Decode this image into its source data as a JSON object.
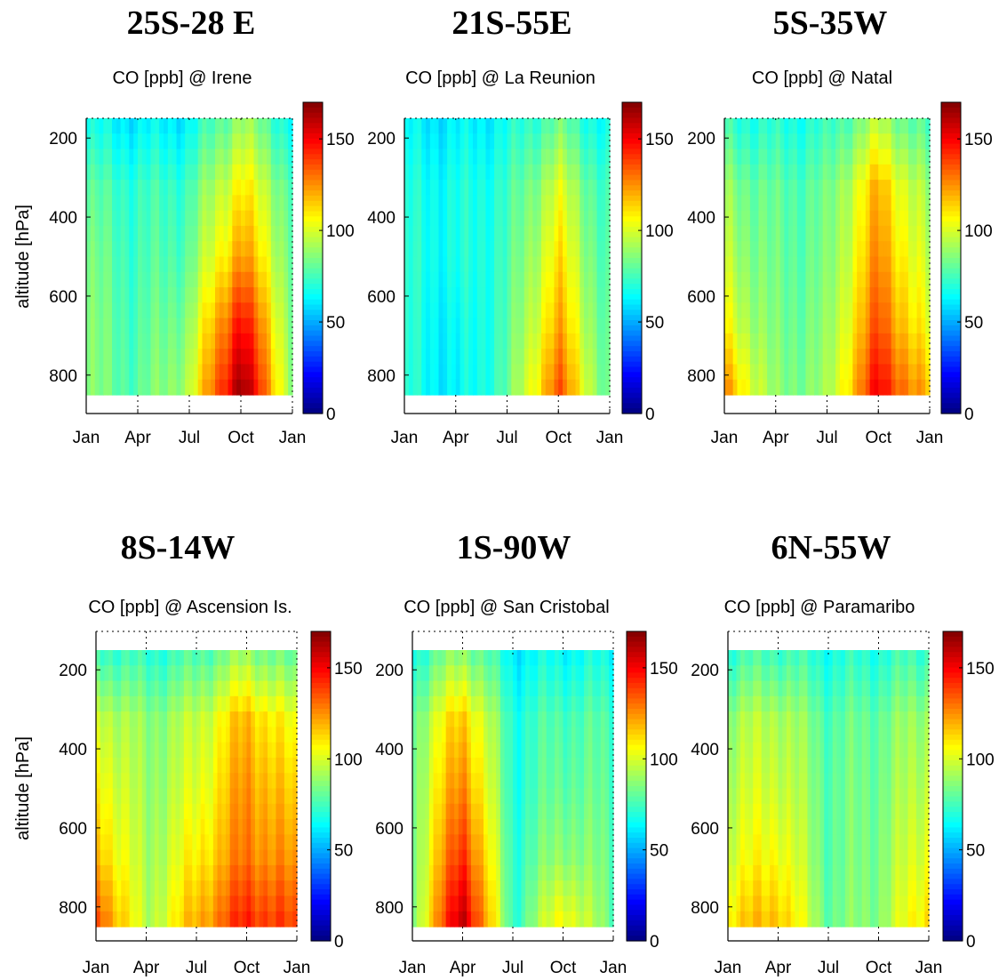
{
  "figure": {
    "headings": [
      "25S-28 E",
      "21S-55E",
      "5S-35W",
      "8S-14W",
      "1S-90W",
      "6N-55W"
    ]
  },
  "chart_data": [
    {
      "type": "heatmap",
      "heading": "25S-28 E",
      "title": "CO [ppb] @ Irene",
      "ylabel": "altitude [hPa]",
      "xlabel": "",
      "x_ticks": [
        "Jan",
        "Apr",
        "Jul",
        "Oct",
        "Jan"
      ],
      "y_ticks": [
        200,
        400,
        600,
        800
      ],
      "y_range": [
        150,
        850
      ],
      "y_reversed": true,
      "colorbar": {
        "ticks": [
          0,
          50,
          100,
          150
        ],
        "range": [
          0,
          170
        ],
        "colormap": "jet"
      },
      "approx_profiles": [
        {
          "month": "Jan",
          "values_low_to_high": [
            85,
            85,
            83,
            78,
            65
          ]
        },
        {
          "month": "Apr",
          "values_low_to_high": [
            78,
            76,
            74,
            72,
            60
          ]
        },
        {
          "month": "Jul",
          "values_low_to_high": [
            95,
            88,
            80,
            75,
            62
          ]
        },
        {
          "month": "Oct",
          "values_low_to_high": [
            170,
            150,
            125,
            110,
            90
          ]
        },
        {
          "month": "Jan",
          "values_low_to_high": [
            88,
            85,
            82,
            78,
            65
          ]
        }
      ]
    },
    {
      "type": "heatmap",
      "heading": "21S-55E",
      "title": "CO [ppb] @ La Reunion",
      "ylabel": "",
      "xlabel": "",
      "x_ticks": [
        "Jan",
        "Apr",
        "Jul",
        "Oct",
        "Jan"
      ],
      "y_ticks": [
        200,
        400,
        600,
        800
      ],
      "y_range": [
        150,
        850
      ],
      "y_reversed": true,
      "colorbar": {
        "ticks": [
          0,
          50,
          100,
          150
        ],
        "range": [
          0,
          170
        ],
        "colormap": "jet"
      },
      "approx_profiles": [
        {
          "month": "Jan",
          "values_low_to_high": [
            70,
            70,
            70,
            68,
            62
          ]
        },
        {
          "month": "Apr",
          "values_low_to_high": [
            60,
            62,
            66,
            66,
            60
          ]
        },
        {
          "month": "Jul",
          "values_low_to_high": [
            78,
            76,
            74,
            72,
            65
          ]
        },
        {
          "month": "Oct",
          "values_low_to_high": [
            135,
            120,
            110,
            100,
            80
          ]
        },
        {
          "month": "Jan",
          "values_low_to_high": [
            75,
            74,
            72,
            70,
            62
          ]
        }
      ]
    },
    {
      "type": "heatmap",
      "heading": "5S-35W",
      "title": "CO [ppb] @ Natal",
      "ylabel": "",
      "xlabel": "",
      "x_ticks": [
        "Jan",
        "Apr",
        "Jul",
        "Oct",
        "Jan"
      ],
      "y_ticks": [
        200,
        400,
        600,
        800
      ],
      "y_range": [
        150,
        850
      ],
      "y_reversed": true,
      "colorbar": {
        "ticks": [
          0,
          50,
          100,
          150
        ],
        "range": [
          0,
          170
        ],
        "colormap": "jet"
      },
      "approx_profiles": [
        {
          "month": "Jan",
          "values_low_to_high": [
            125,
            105,
            95,
            88,
            72
          ]
        },
        {
          "month": "Apr",
          "values_low_to_high": [
            85,
            82,
            80,
            78,
            68
          ]
        },
        {
          "month": "Jul",
          "values_low_to_high": [
            88,
            85,
            82,
            80,
            70
          ]
        },
        {
          "month": "Oct",
          "values_low_to_high": [
            150,
            135,
            125,
            118,
            92
          ]
        },
        {
          "month": "Jan",
          "values_low_to_high": [
            115,
            100,
            92,
            86,
            72
          ]
        }
      ]
    },
    {
      "type": "heatmap",
      "heading": "8S-14W",
      "title": "CO [ppb] @ Ascension Is.",
      "ylabel": "altitude [hPa]",
      "xlabel": "",
      "x_ticks": [
        "Jan",
        "Apr",
        "Jul",
        "Oct",
        "Jan"
      ],
      "y_ticks": [
        200,
        400,
        600,
        800
      ],
      "y_range": [
        150,
        850
      ],
      "y_reversed": true,
      "colorbar": {
        "ticks": [
          0,
          50,
          100,
          150
        ],
        "range": [
          0,
          170
        ],
        "colormap": "jet"
      },
      "approx_profiles": [
        {
          "month": "Jan",
          "values_low_to_high": [
            140,
            120,
            110,
            100,
            75
          ]
        },
        {
          "month": "Apr",
          "values_low_to_high": [
            92,
            90,
            88,
            86,
            70
          ]
        },
        {
          "month": "Jul",
          "values_low_to_high": [
            120,
            108,
            100,
            95,
            75
          ]
        },
        {
          "month": "Oct",
          "values_low_to_high": [
            145,
            130,
            125,
            118,
            88
          ]
        },
        {
          "month": "Jan",
          "values_low_to_high": [
            135,
            120,
            110,
            100,
            75
          ]
        }
      ]
    },
    {
      "type": "heatmap",
      "heading": "1S-90W",
      "title": "CO [ppb] @ San Cristobal",
      "ylabel": "",
      "xlabel": "",
      "x_ticks": [
        "Jan",
        "Apr",
        "Jul",
        "Oct",
        "Jan"
      ],
      "y_ticks": [
        200,
        400,
        600,
        800
      ],
      "y_range": [
        150,
        850
      ],
      "y_reversed": true,
      "colorbar": {
        "ticks": [
          0,
          50,
          100,
          150
        ],
        "range": [
          0,
          170
        ],
        "colormap": "jet"
      },
      "approx_profiles": [
        {
          "month": "Jan",
          "values_low_to_high": [
            85,
            84,
            84,
            82,
            68
          ]
        },
        {
          "month": "Apr",
          "values_low_to_high": [
            165,
            145,
            130,
            118,
            88
          ]
        },
        {
          "month": "Jul",
          "values_low_to_high": [
            72,
            72,
            70,
            70,
            62
          ]
        },
        {
          "month": "Oct",
          "values_low_to_high": [
            110,
            90,
            82,
            78,
            65
          ]
        },
        {
          "month": "Jan",
          "values_low_to_high": [
            80,
            80,
            78,
            76,
            65
          ]
        }
      ]
    },
    {
      "type": "heatmap",
      "heading": "6N-55W",
      "title": "CO [ppb] @ Paramaribo",
      "ylabel": "",
      "xlabel": "",
      "x_ticks": [
        "Jan",
        "Apr",
        "Jul",
        "Oct",
        "Jan"
      ],
      "y_ticks": [
        200,
        400,
        600,
        800
      ],
      "y_range": [
        150,
        850
      ],
      "y_reversed": true,
      "colorbar": {
        "ticks": [
          0,
          50,
          100,
          150
        ],
        "range": [
          0,
          170
        ],
        "colormap": "jet"
      },
      "approx_profiles": [
        {
          "month": "Jan",
          "values_low_to_high": [
            112,
            100,
            95,
            90,
            72
          ]
        },
        {
          "month": "Apr",
          "values_low_to_high": [
            120,
            108,
            100,
            95,
            75
          ]
        },
        {
          "month": "Jul",
          "values_low_to_high": [
            82,
            80,
            80,
            78,
            68
          ]
        },
        {
          "month": "Oct",
          "values_low_to_high": [
            88,
            86,
            84,
            82,
            70
          ]
        },
        {
          "month": "Jan",
          "values_low_to_high": [
            115,
            105,
            98,
            92,
            74
          ]
        }
      ]
    }
  ]
}
